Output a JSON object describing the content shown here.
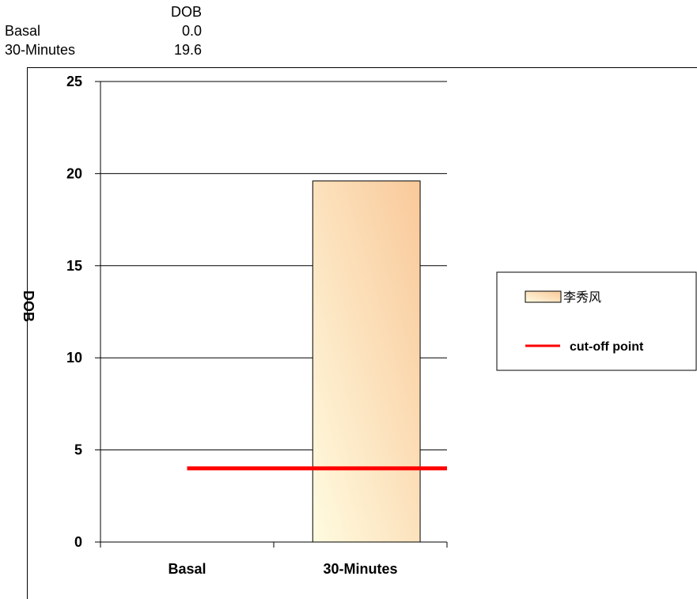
{
  "table": {
    "header": "DOB",
    "rows": [
      {
        "label": "Basal",
        "value": "0.0"
      },
      {
        "label": "30-Minutes",
        "value": "19.6"
      }
    ]
  },
  "chart_data": {
    "type": "bar",
    "categories": [
      "Basal",
      "30-Minutes"
    ],
    "series": [
      {
        "name": "李秀风",
        "values": [
          0.0,
          19.6
        ]
      }
    ],
    "cutoff": {
      "name": "cut-off point",
      "value": 4
    },
    "ylabel": "DOB",
    "xlabel": "",
    "ylim": [
      0,
      25
    ],
    "yticks": [
      0,
      5,
      10,
      15,
      20,
      25
    ],
    "grid": true,
    "legend_position": "right",
    "colors": {
      "bar_fill_light": "#fffbe0",
      "bar_fill_dark": "#f9c99a",
      "cutoff_line": "#ff0000",
      "grid": "#000000"
    }
  }
}
